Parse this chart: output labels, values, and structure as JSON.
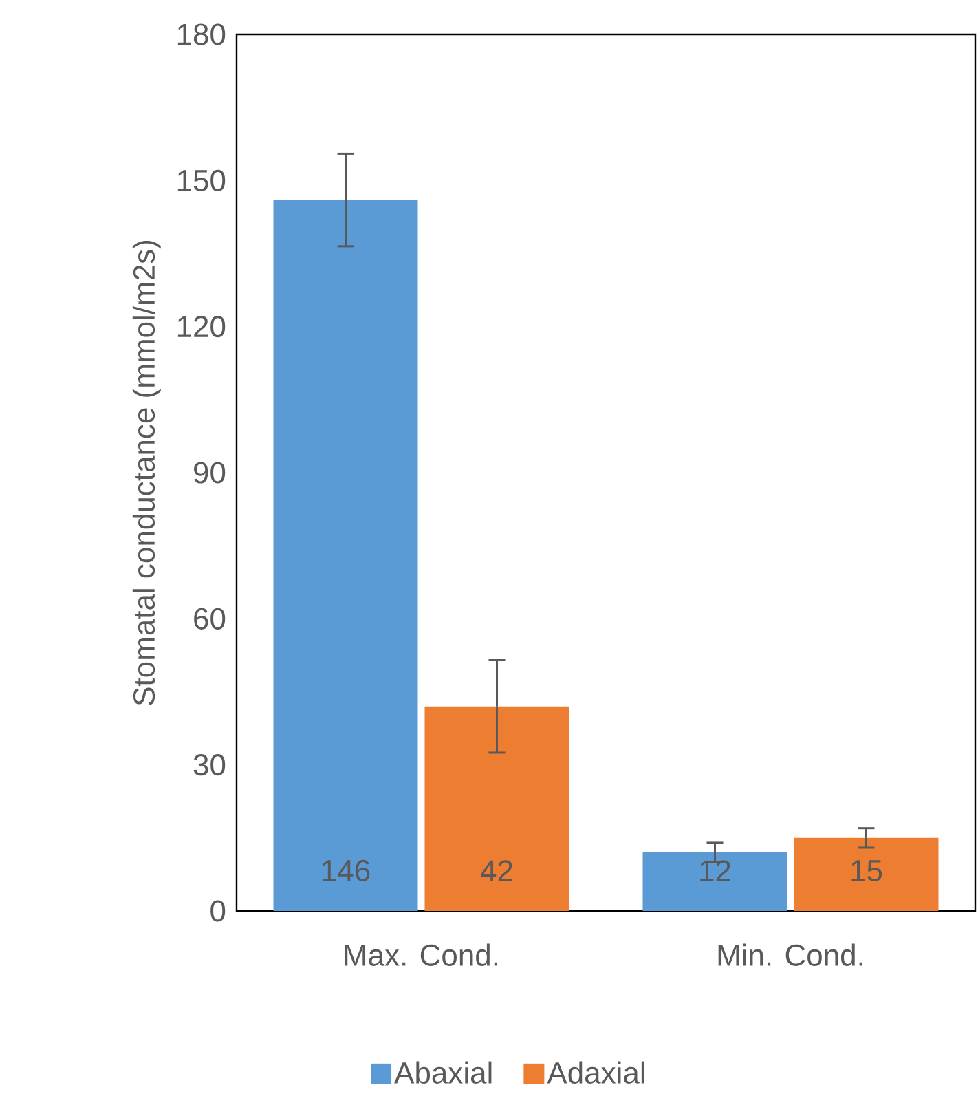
{
  "chart_data": {
    "type": "bar",
    "ylabel": "Stomatal conductance (mmol/m2s)",
    "categories": [
      "Max. Cond.",
      "Min. Cond."
    ],
    "series": [
      {
        "name": "Abaxial",
        "color": "#5b9bd5",
        "values": [
          146,
          12
        ],
        "errors": [
          9.5,
          2
        ]
      },
      {
        "name": "Adaxial",
        "color": "#ed7d31",
        "values": [
          42,
          15
        ],
        "errors": [
          9.5,
          2
        ]
      }
    ],
    "ylim": [
      0,
      180
    ],
    "yticks": [
      0,
      30,
      60,
      90,
      120,
      150,
      180
    ],
    "data_labels": true,
    "legend": "bottom",
    "grid": false
  }
}
